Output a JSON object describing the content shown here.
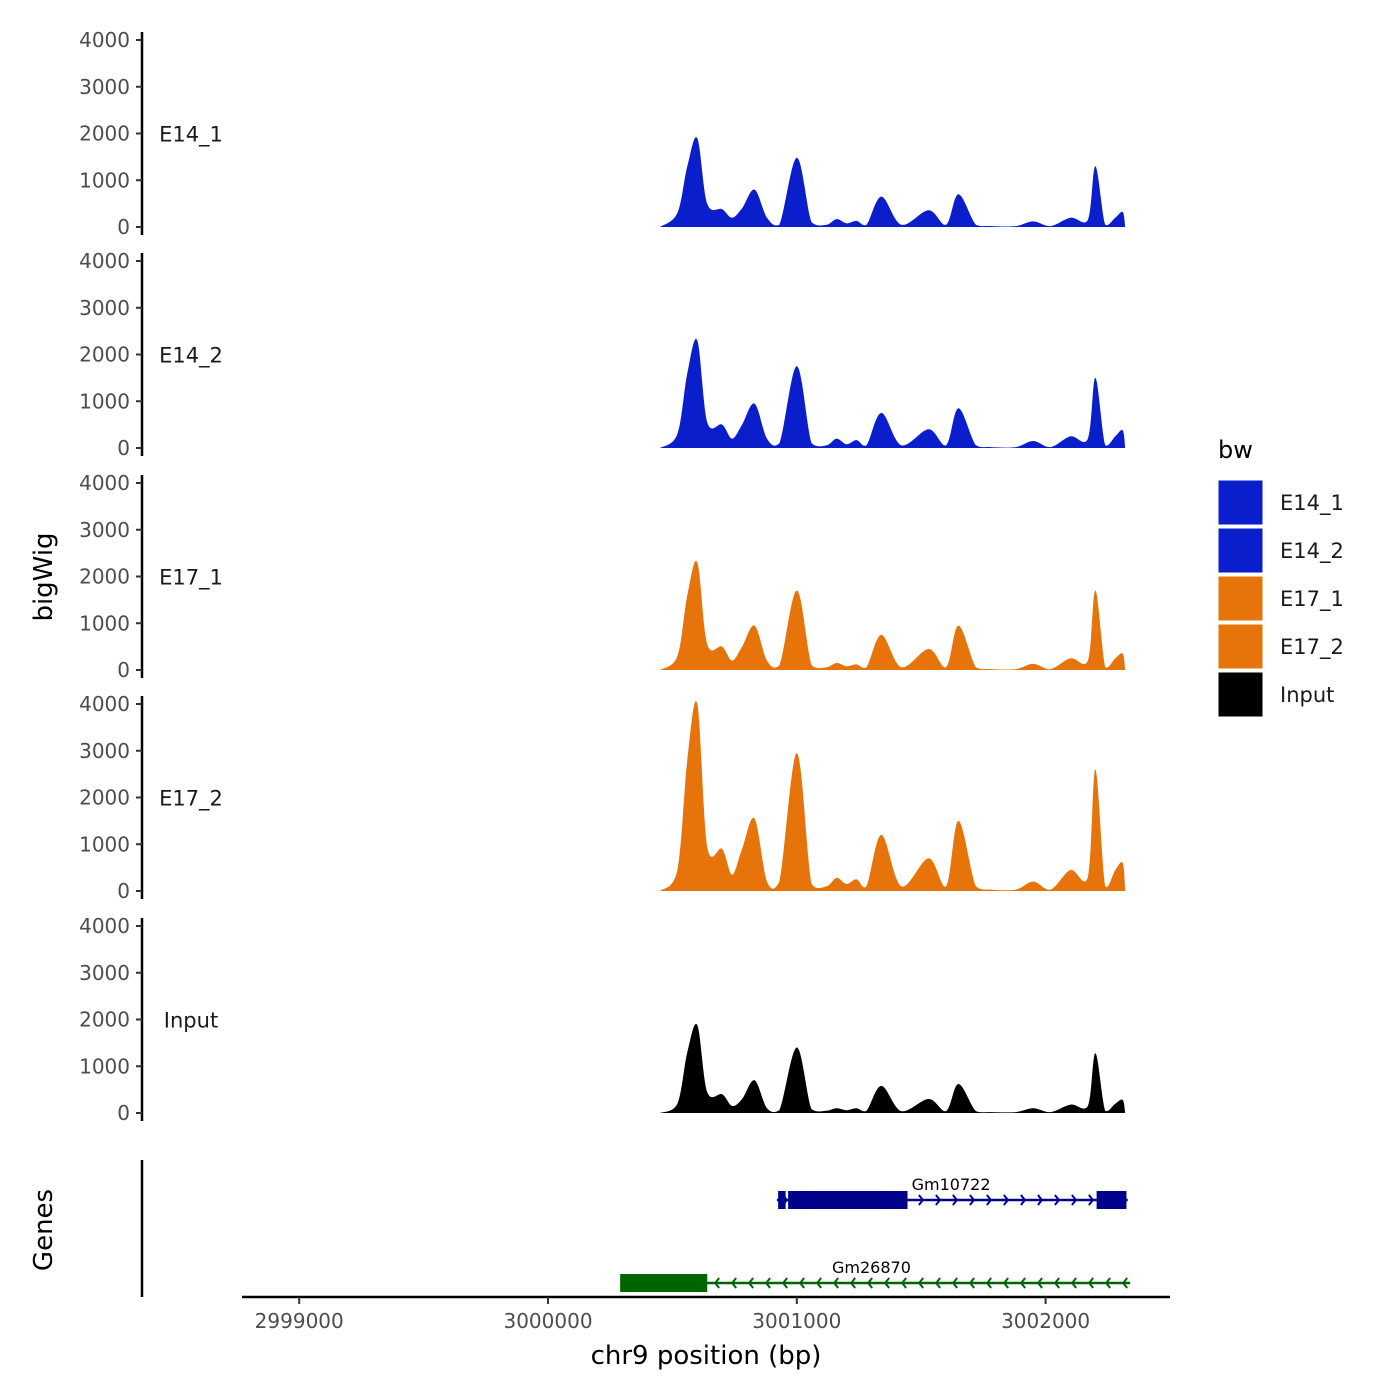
{
  "chart_data": {
    "type": "area",
    "title": "",
    "ylabel": "bigWig",
    "genes_label": "Genes",
    "xlabel": "chr9 position (bp)",
    "xlim": [
      2998770,
      3002500
    ],
    "ylim": [
      0,
      4000
    ],
    "y_ticks": [
      0,
      1000,
      2000,
      3000,
      4000
    ],
    "x_ticks": [
      2999000,
      3000000,
      3001000,
      3002000
    ],
    "x_tick_labels": [
      "2999000",
      "3000000",
      "3001000",
      "3002000"
    ],
    "legend": {
      "title": "bw",
      "placement": "right",
      "entries": [
        {
          "name": "E14_1",
          "color": "#0A1FCB"
        },
        {
          "name": "E14_2",
          "color": "#0A1FCB"
        },
        {
          "name": "E17_1",
          "color": "#E6740A"
        },
        {
          "name": "E17_2",
          "color": "#E6740A"
        },
        {
          "name": "Input",
          "color": "#000000"
        }
      ]
    },
    "series": [
      {
        "name": "E14_1",
        "color": "#0A1FCB",
        "x": [
          3000450,
          3000520,
          3000560,
          3000600,
          3000640,
          3000700,
          3000740,
          3000780,
          3000830,
          3000880,
          3000930,
          3001000,
          3001060,
          3001120,
          3001160,
          3001200,
          3001240,
          3001280,
          3001340,
          3001420,
          3001530,
          3001600,
          3001650,
          3001720,
          3001780,
          3001880,
          3001950,
          3002020,
          3002100,
          3002170,
          3002200,
          3002240,
          3002280,
          3002310,
          3002320
        ],
        "values": [
          0,
          300,
          1300,
          1900,
          500,
          380,
          200,
          400,
          800,
          200,
          50,
          1480,
          100,
          50,
          170,
          80,
          130,
          50,
          650,
          50,
          360,
          50,
          700,
          50,
          20,
          20,
          120,
          20,
          200,
          150,
          1300,
          50,
          200,
          320,
          0
        ]
      },
      {
        "name": "E14_2",
        "color": "#0A1FCB",
        "x": [
          3000450,
          3000520,
          3000560,
          3000600,
          3000640,
          3000700,
          3000740,
          3000780,
          3000830,
          3000880,
          3000930,
          3001000,
          3001060,
          3001120,
          3001160,
          3001200,
          3001240,
          3001280,
          3001340,
          3001420,
          3001530,
          3001600,
          3001650,
          3001720,
          3001780,
          3001880,
          3001950,
          3002020,
          3002100,
          3002170,
          3002200,
          3002240,
          3002280,
          3002310,
          3002320
        ],
        "values": [
          0,
          300,
          1600,
          2300,
          550,
          500,
          200,
          500,
          950,
          200,
          100,
          1750,
          100,
          60,
          200,
          80,
          170,
          60,
          750,
          60,
          400,
          60,
          850,
          60,
          20,
          20,
          150,
          20,
          250,
          200,
          1500,
          60,
          250,
          380,
          0
        ]
      },
      {
        "name": "E17_1",
        "color": "#E6740A",
        "x": [
          3000450,
          3000520,
          3000560,
          3000600,
          3000640,
          3000700,
          3000740,
          3000780,
          3000830,
          3000880,
          3000930,
          3001000,
          3001060,
          3001120,
          3001160,
          3001200,
          3001240,
          3001280,
          3001340,
          3001420,
          3001530,
          3001600,
          3001650,
          3001720,
          3001780,
          3001880,
          3001950,
          3002020,
          3002100,
          3002170,
          3002200,
          3002240,
          3002280,
          3002310,
          3002320
        ],
        "values": [
          0,
          300,
          1600,
          2300,
          550,
          500,
          200,
          500,
          950,
          200,
          100,
          1700,
          100,
          60,
          150,
          80,
          120,
          60,
          750,
          60,
          450,
          60,
          950,
          60,
          20,
          20,
          130,
          20,
          250,
          200,
          1700,
          60,
          250,
          350,
          0
        ]
      },
      {
        "name": "E17_2",
        "color": "#E6740A",
        "x": [
          3000450,
          3000520,
          3000560,
          3000600,
          3000640,
          3000700,
          3000740,
          3000780,
          3000830,
          3000880,
          3000930,
          3001000,
          3001060,
          3001120,
          3001160,
          3001200,
          3001240,
          3001280,
          3001340,
          3001420,
          3001530,
          3001600,
          3001650,
          3001720,
          3001780,
          3001880,
          3001950,
          3002020,
          3002100,
          3002170,
          3002200,
          3002240,
          3002280,
          3002310,
          3002320
        ],
        "values": [
          0,
          450,
          2800,
          4000,
          950,
          900,
          350,
          900,
          1550,
          200,
          200,
          2950,
          150,
          100,
          280,
          150,
          250,
          100,
          1200,
          100,
          700,
          100,
          1500,
          100,
          30,
          30,
          200,
          30,
          450,
          300,
          2600,
          100,
          450,
          600,
          0
        ]
      },
      {
        "name": "Input",
        "color": "#000000",
        "x": [
          3000450,
          3000520,
          3000560,
          3000600,
          3000640,
          3000700,
          3000740,
          3000780,
          3000830,
          3000880,
          3000930,
          3001000,
          3001060,
          3001120,
          3001160,
          3001200,
          3001240,
          3001280,
          3001340,
          3001420,
          3001530,
          3001600,
          3001650,
          3001720,
          3001780,
          3001880,
          3001950,
          3002020,
          3002100,
          3002170,
          3002200,
          3002240,
          3002280,
          3002310,
          3002320
        ],
        "values": [
          0,
          200,
          1300,
          1880,
          450,
          400,
          150,
          300,
          700,
          100,
          60,
          1400,
          80,
          50,
          100,
          60,
          100,
          50,
          580,
          40,
          300,
          40,
          620,
          40,
          20,
          20,
          100,
          20,
          180,
          150,
          1280,
          50,
          200,
          280,
          0
        ]
      }
    ],
    "genes": [
      {
        "name": "Gm10722",
        "color": "#00008B",
        "strand": "+",
        "start": 3000920,
        "end": 3002330,
        "exons": [
          [
            3000925,
            3000955
          ],
          [
            3000965,
            3001445
          ],
          [
            3002205,
            3002325
          ]
        ],
        "label_position": 3001620
      },
      {
        "name": "Gm26870",
        "color": "#006400",
        "strand": "-",
        "start": 3000290,
        "end": 3002340,
        "exons": [
          [
            3000290,
            3000640
          ]
        ],
        "label_position": 3001300
      }
    ]
  }
}
